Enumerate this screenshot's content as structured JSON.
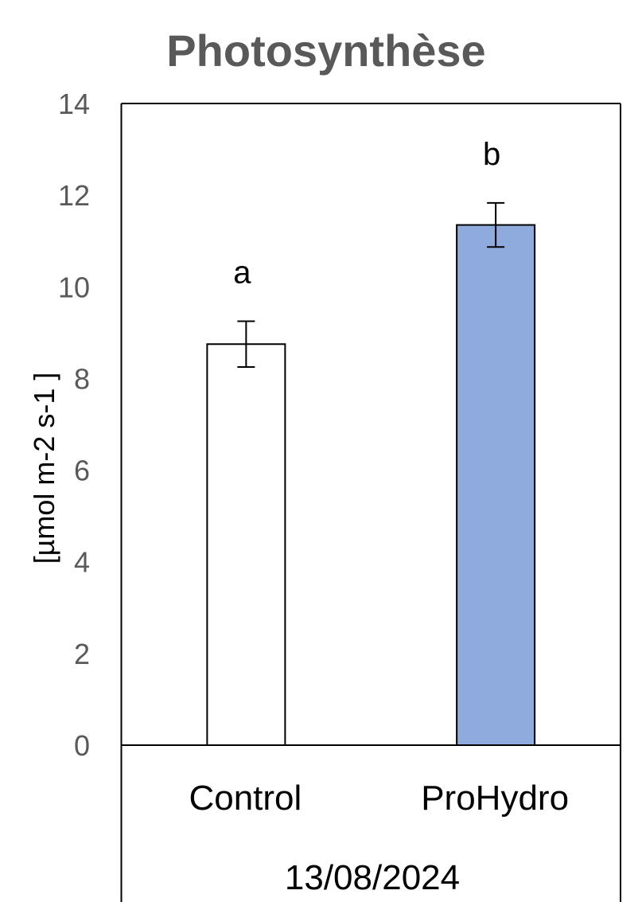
{
  "chart_data": {
    "type": "bar",
    "title": "Photosynthèse",
    "ylabel": "[µmol m-2 s-1 ]",
    "xlabel": "",
    "ylim": [
      0,
      14
    ],
    "yticks": [
      0,
      2,
      4,
      6,
      8,
      10,
      12,
      14
    ],
    "categories": [
      "Control",
      "ProHydro"
    ],
    "values": [
      8.75,
      11.35
    ],
    "errors": [
      0.5,
      0.48
    ],
    "significance": [
      "a",
      "b"
    ],
    "bar_colors": [
      "#ffffff",
      "#8faadc"
    ],
    "group_label": "13/08/2024",
    "grid": false,
    "legend": "none"
  },
  "colors": {
    "title": "#595959",
    "tick_label": "#595959",
    "axis": "#000000",
    "text": "#000000"
  }
}
